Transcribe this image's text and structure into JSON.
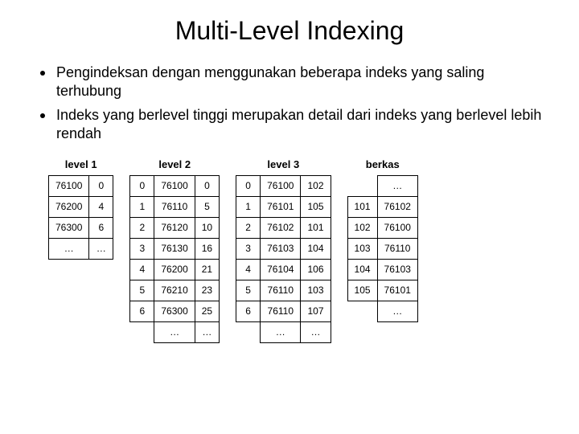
{
  "title": "Multi-Level Indexing",
  "bullets": [
    "Pengindeksan dengan menggunakan beberapa indeks yang saling terhubung",
    "Indeks yang berlevel tinggi merupakan detail dari indeks yang berlevel lebih rendah"
  ],
  "labels": {
    "level1": "level 1",
    "level2": "level 2",
    "level3": "level 3",
    "berkas": "berkas"
  },
  "level1": {
    "rows": [
      [
        "76100",
        "0"
      ],
      [
        "76200",
        "4"
      ],
      [
        "76300",
        "6"
      ],
      [
        "…",
        "…"
      ]
    ]
  },
  "level2": {
    "rows": [
      [
        "0",
        "76100",
        "0"
      ],
      [
        "1",
        "76110",
        "5"
      ],
      [
        "2",
        "76120",
        "10"
      ],
      [
        "3",
        "76130",
        "16"
      ],
      [
        "4",
        "76200",
        "21"
      ],
      [
        "5",
        "76210",
        "23"
      ],
      [
        "6",
        "76300",
        "25"
      ],
      [
        "",
        "…",
        "…"
      ]
    ]
  },
  "level3": {
    "rows": [
      [
        "0",
        "76100",
        "102"
      ],
      [
        "1",
        "76101",
        "105"
      ],
      [
        "2",
        "76102",
        "101"
      ],
      [
        "3",
        "76103",
        "104"
      ],
      [
        "4",
        "76104",
        "106"
      ],
      [
        "5",
        "76110",
        "103"
      ],
      [
        "6",
        "76110",
        "107"
      ],
      [
        "",
        "…",
        "…"
      ]
    ]
  },
  "berkas": {
    "rows": [
      [
        "",
        "…"
      ],
      [
        "101",
        "76102"
      ],
      [
        "102",
        "76100"
      ],
      [
        "103",
        "76110"
      ],
      [
        "104",
        "76103"
      ],
      [
        "105",
        "76101"
      ],
      [
        "",
        "…"
      ]
    ]
  },
  "style": {
    "background_color": "#ffffff",
    "text_color": "#000000",
    "border_color": "#000000",
    "title_fontsize": 32,
    "bullet_fontsize": 18,
    "table_fontsize": 12,
    "label_fontsize": 13
  }
}
